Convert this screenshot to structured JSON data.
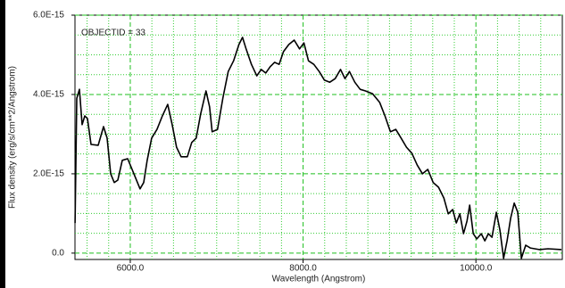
{
  "chart_data": {
    "type": "line",
    "annotation": "OBJECTID = 33",
    "x_label": "Wavelength (Angstrom)",
    "y_label": "Flux density (erg/s/cm**2/Angstrom)",
    "xlim": [
      5360,
      11000
    ],
    "ylim": [
      -1.6e-16,
      6e-15
    ],
    "xticks": [
      {
        "value": 6000,
        "label": "6000.0"
      },
      {
        "value": 8000,
        "label": "8000.0"
      },
      {
        "value": 10000,
        "label": "10000.0"
      }
    ],
    "yticks": [
      {
        "value": 0,
        "label": "0.0"
      },
      {
        "value": 2e-15,
        "label": "2.0E-15"
      },
      {
        "value": 4e-15,
        "label": "4.0E-15"
      },
      {
        "value": 6e-15,
        "label": "6.0E-15"
      }
    ],
    "x_minor_ticks": [
      5500,
      5750,
      6250,
      6500,
      6750,
      7000,
      7250,
      7500,
      7750,
      8250,
      8500,
      8750,
      9000,
      9250,
      9500,
      9750,
      10250,
      10500,
      10750
    ],
    "y_minor_ticks": [
      5e-16,
      1e-15,
      1.5e-15,
      2.5e-15,
      3e-15,
      3.5e-15,
      4.5e-15,
      5e-15,
      5.5e-15
    ],
    "grid": true,
    "series": [
      {
        "color": "#000000",
        "x": [
          5361,
          5381,
          5412,
          5443,
          5474,
          5505,
          5546,
          5629,
          5691,
          5732,
          5773,
          5814,
          5856,
          5907,
          5969,
          6021,
          6062,
          6113,
          6155,
          6196,
          6247,
          6309,
          6371,
          6433,
          6485,
          6536,
          6588,
          6660,
          6711,
          6763,
          6814,
          6876,
          6918,
          6948,
          7010,
          7072,
          7134,
          7196,
          7258,
          7299,
          7340,
          7402,
          7464,
          7515,
          7567,
          7619,
          7670,
          7722,
          7773,
          7835,
          7897,
          7959,
          8010,
          8062,
          8124,
          8186,
          8247,
          8309,
          8371,
          8433,
          8485,
          8536,
          8598,
          8660,
          8722,
          8804,
          8887,
          8948,
          9010,
          9072,
          9134,
          9196,
          9258,
          9320,
          9381,
          9443,
          9505,
          9567,
          9629,
          9680,
          9732,
          9773,
          9814,
          9856,
          9897,
          9928,
          9969,
          10010,
          10062,
          10103,
          10144,
          10186,
          10237,
          10278,
          10320,
          10361,
          10402,
          10443,
          10485,
          10526,
          10577,
          10629,
          10732,
          10835,
          10990
        ],
        "values": [
          7.6e-16,
          3.9e-15,
          4.13e-15,
          3.24e-15,
          3.46e-15,
          3.39e-15,
          2.74e-15,
          2.72e-15,
          3.19e-15,
          2.9e-15,
          2e-15,
          1.78e-15,
          1.84e-15,
          2.34e-15,
          2.38e-15,
          2.11e-15,
          1.89e-15,
          1.62e-15,
          1.78e-15,
          2.34e-15,
          2.9e-15,
          3.12e-15,
          3.46e-15,
          3.75e-15,
          3.24e-15,
          2.67e-15,
          2.43e-15,
          2.43e-15,
          2.79e-15,
          2.9e-15,
          3.51e-15,
          4.09e-15,
          3.69e-15,
          3.06e-15,
          3.12e-15,
          3.91e-15,
          4.58e-15,
          4.85e-15,
          5.26e-15,
          5.44e-15,
          5.15e-15,
          4.76e-15,
          4.47e-15,
          4.63e-15,
          4.54e-15,
          4.7e-15,
          4.81e-15,
          4.76e-15,
          5.08e-15,
          5.26e-15,
          5.37e-15,
          5.15e-15,
          5.3e-15,
          4.85e-15,
          4.76e-15,
          4.58e-15,
          4.36e-15,
          4.31e-15,
          4.4e-15,
          4.63e-15,
          4.4e-15,
          4.58e-15,
          4.31e-15,
          4.13e-15,
          4.09e-15,
          4.02e-15,
          3.8e-15,
          3.46e-15,
          3.06e-15,
          3.12e-15,
          2.9e-15,
          2.67e-15,
          2.52e-15,
          2.22e-15,
          2e-15,
          2.11e-15,
          1.78e-15,
          1.66e-15,
          1.39e-15,
          9.9e-16,
          1.1e-15,
          7.6e-16,
          9.9e-16,
          4.9e-16,
          8.1e-16,
          1.21e-15,
          4.9e-16,
          3.6e-16,
          4.9e-16,
          3.1e-16,
          4.9e-16,
          4e-16,
          1.03e-15,
          5.8e-16,
          -1.3e-16,
          3.1e-16,
          8.8e-16,
          1.26e-15,
          1.03e-15,
          -1.3e-16,
          2e-16,
          1.3e-16,
          9e-17,
          1.1e-16,
          9e-17
        ]
      }
    ]
  }
}
